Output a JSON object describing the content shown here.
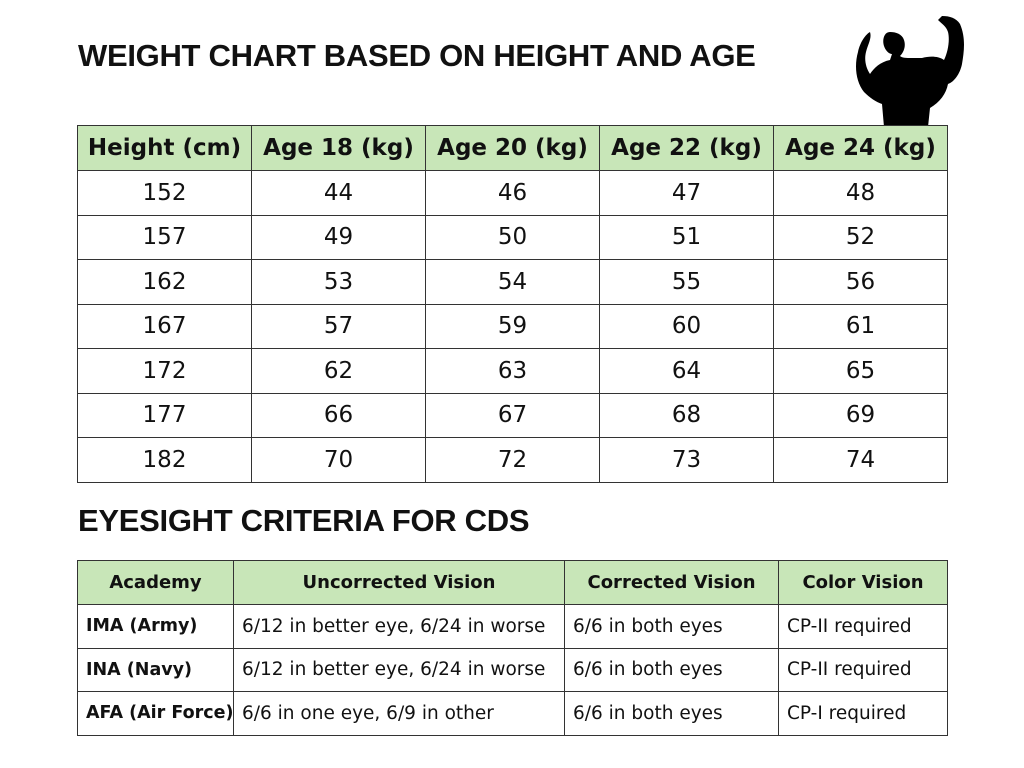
{
  "weight_chart": {
    "title": "WEIGHT CHART BASED ON HEIGHT AND AGE",
    "headers": [
      "Height (cm)",
      "Age 18 (kg)",
      "Age 20 (kg)",
      "Age 22 (kg)",
      "Age 24 (kg)"
    ],
    "rows": [
      [
        152,
        44,
        46,
        47,
        48
      ],
      [
        157,
        49,
        50,
        51,
        52
      ],
      [
        162,
        53,
        54,
        55,
        56
      ],
      [
        167,
        57,
        59,
        60,
        61
      ],
      [
        172,
        62,
        63,
        64,
        65
      ],
      [
        177,
        66,
        67,
        68,
        69
      ],
      [
        182,
        70,
        72,
        73,
        74
      ]
    ]
  },
  "eyesight_criteria": {
    "title": "EYESIGHT CRITERIA FOR CDS",
    "headers": [
      "Academy",
      "Uncorrected Vision",
      "Corrected Vision",
      "Color Vision"
    ],
    "rows": [
      [
        "IMA (Army)",
        "6/12 in better eye, 6/24 in worse",
        "6/6 in both eyes",
        "CP-II required"
      ],
      [
        "INA (Navy)",
        "6/12 in better eye, 6/24 in worse",
        "6/6 in both eyes",
        "CP-II required"
      ],
      [
        "AFA (Air Force)",
        "6/6 in one eye, 6/9 in other",
        "6/6 in both eyes",
        "CP-I required"
      ]
    ]
  }
}
